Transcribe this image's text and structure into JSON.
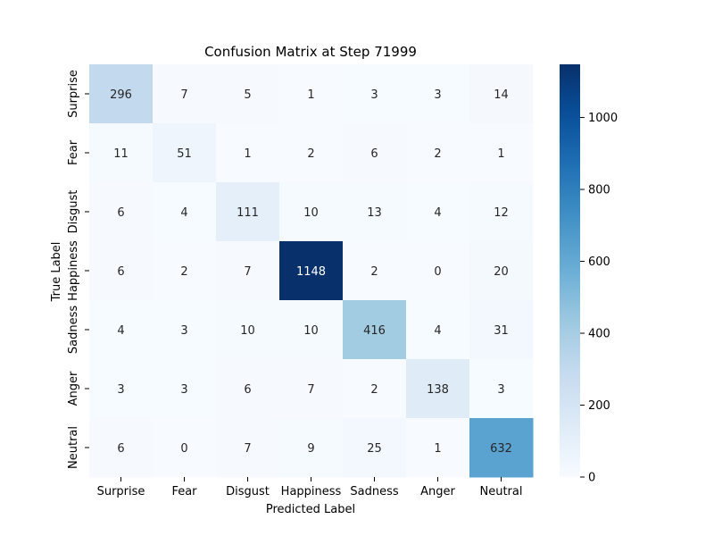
{
  "chart_data": {
    "type": "heatmap",
    "title": "Confusion Matrix at Step 71999",
    "xlabel": "Predicted Label",
    "ylabel": "True Label",
    "x_categories": [
      "Surprise",
      "Fear",
      "Disgust",
      "Happiness",
      "Sadness",
      "Anger",
      "Neutral"
    ],
    "y_categories": [
      "Surprise",
      "Fear",
      "Disgust",
      "Happiness",
      "Sadness",
      "Anger",
      "Neutral"
    ],
    "values": [
      [
        296,
        7,
        5,
        1,
        3,
        3,
        14
      ],
      [
        11,
        51,
        1,
        2,
        6,
        2,
        1
      ],
      [
        6,
        4,
        111,
        10,
        13,
        4,
        12
      ],
      [
        6,
        2,
        7,
        1148,
        2,
        0,
        20
      ],
      [
        4,
        3,
        10,
        10,
        416,
        4,
        31
      ],
      [
        3,
        3,
        6,
        7,
        2,
        138,
        3
      ],
      [
        6,
        0,
        7,
        9,
        25,
        1,
        632
      ]
    ],
    "colormap": "Blues",
    "color_range": [
      0,
      1148
    ],
    "colorbar_ticks": [
      0,
      200,
      400,
      600,
      800,
      1000
    ],
    "grid": false
  }
}
